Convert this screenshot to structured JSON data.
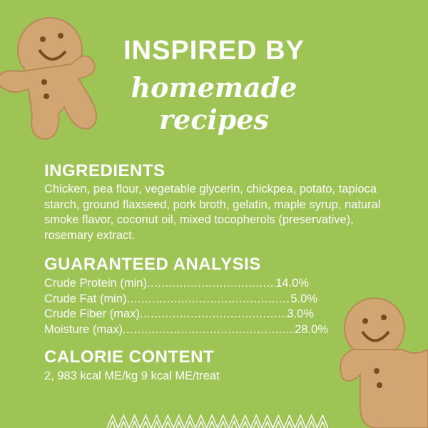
{
  "headline": {
    "line1": "INSPIRED BY",
    "line2": "homemade",
    "line3": "recipes"
  },
  "ingredients": {
    "heading": "INGREDIENTS",
    "text": "Chicken, pea flour, vegetable glycerin, chickpea, potato, tapioca starch, ground flaxseed, pork broth, gelatin, maple syrup, natural smoke flavor, coconut oil, mixed tocopherols (preservative), rosemary extract."
  },
  "analysis": {
    "heading": "GUARANTEED ANALYSIS",
    "rows": [
      {
        "label": "Crude Protein (min)",
        "value": "14.0%"
      },
      {
        "label": "Crude Fat (min)",
        "value": "5.0%"
      },
      {
        "label": "Crude Fiber (max)",
        "value": "3.0%"
      },
      {
        "label": "Moisture (max)",
        "value": "28.0%"
      }
    ]
  },
  "calorie": {
    "heading": "CALORIE CONTENT",
    "text": "2, 983 kcal ME/kg 9 kcal ME/treat"
  },
  "colors": {
    "background": "#9dc454",
    "text": "#ffffff",
    "cookie": "#d2a672"
  }
}
